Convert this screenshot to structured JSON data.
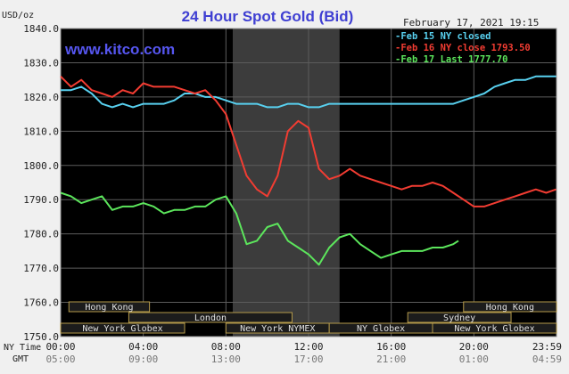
{
  "chart_data": {
    "type": "line",
    "title": "24 Hour Spot Gold (Bid)",
    "date_label": "February 17, 2021 19:15",
    "site": "www.kitco.com",
    "ylabel": "USD/oz",
    "ylim": [
      1750,
      1840
    ],
    "yticks": [
      "1840.0",
      "1830.0",
      "1820.0",
      "1810.0",
      "1800.0",
      "1790.0",
      "1780.0",
      "1770.0",
      "1760.0",
      "1750.0"
    ],
    "x_ny_label": "NY Time",
    "x_gmt_label": "GMT",
    "x_ny_ticks": [
      "00:00",
      "04:00",
      "08:00",
      "12:00",
      "16:00",
      "20:00",
      "23:59"
    ],
    "x_gmt_ticks": [
      "05:00",
      "09:00",
      "13:00",
      "17:00",
      "21:00",
      "01:00",
      "04:59"
    ],
    "shaded_session": "New York NYMEX",
    "markets": [
      {
        "name": "Hong Kong",
        "row": 0
      },
      {
        "name": "Hong Kong",
        "row": 0
      },
      {
        "name": "London",
        "row": 1
      },
      {
        "name": "Sydney",
        "row": 1
      },
      {
        "name": "New York Globex",
        "row": 2
      },
      {
        "name": "New York NYMEX",
        "row": 2
      },
      {
        "name": "NY Globex",
        "row": 2
      },
      {
        "name": "New York Globex",
        "row": 2
      }
    ],
    "series": [
      {
        "name": "Feb 15 NY closed",
        "color": "#58d0ef",
        "x_hours": [
          0,
          0.5,
          1,
          1.5,
          2,
          2.5,
          3,
          3.5,
          4,
          4.5,
          5,
          5.5,
          6,
          6.5,
          7,
          7.5,
          8,
          8.5,
          9,
          9.5,
          10,
          10.5,
          11,
          11.5,
          12,
          12.5,
          13,
          13.5,
          14,
          14.5,
          15,
          15.5,
          16,
          16.5,
          17,
          17.5,
          18,
          18.5,
          19,
          19.5,
          20,
          20.5,
          21,
          21.5,
          22,
          22.5,
          23,
          23.5,
          23.98
        ],
        "values": [
          1822,
          1822,
          1823,
          1821,
          1818,
          1817,
          1818,
          1817,
          1818,
          1818,
          1818,
          1819,
          1821,
          1821,
          1820,
          1820,
          1819,
          1818,
          1818,
          1818,
          1817,
          1817,
          1818,
          1818,
          1817,
          1817,
          1818,
          1818,
          1818,
          1818,
          1818,
          1818,
          1818,
          1818,
          1818,
          1818,
          1818,
          1818,
          1818,
          1819,
          1820,
          1821,
          1823,
          1824,
          1825,
          1825,
          1826,
          1826,
          1826
        ]
      },
      {
        "name": "Feb 16 NY close 1793.50",
        "color": "#f23c32",
        "x_hours": [
          0,
          0.5,
          1,
          1.5,
          2,
          2.5,
          3,
          3.5,
          4,
          4.5,
          5,
          5.5,
          6,
          6.5,
          7,
          7.5,
          8,
          8.5,
          9,
          9.5,
          10,
          10.5,
          11,
          11.5,
          12,
          12.5,
          13,
          13.5,
          14,
          14.5,
          15,
          15.5,
          16,
          16.5,
          17,
          17.5,
          18,
          18.5,
          19,
          19.5,
          20,
          20.5,
          21,
          21.5,
          22,
          22.5,
          23,
          23.5,
          23.98
        ],
        "values": [
          1826,
          1823,
          1825,
          1822,
          1821,
          1820,
          1822,
          1821,
          1824,
          1823,
          1823,
          1823,
          1822,
          1821,
          1822,
          1819,
          1815,
          1806,
          1797,
          1793,
          1791,
          1797,
          1810,
          1813,
          1811,
          1799,
          1796,
          1797,
          1799,
          1797,
          1796,
          1795,
          1794,
          1793,
          1794,
          1794,
          1795,
          1794,
          1792,
          1790,
          1788,
          1788,
          1789,
          1790,
          1791,
          1792,
          1793,
          1792,
          1793
        ]
      },
      {
        "name": "Feb 17 Last 1777.70",
        "color": "#5ce65c",
        "x_hours": [
          0,
          0.5,
          1,
          1.5,
          2,
          2.5,
          3,
          3.5,
          4,
          4.5,
          5,
          5.5,
          6,
          6.5,
          7,
          7.5,
          8,
          8.5,
          9,
          9.5,
          10,
          10.5,
          11,
          11.5,
          12,
          12.5,
          13,
          13.5,
          14,
          14.5,
          15,
          15.5,
          16,
          16.5,
          17,
          17.5,
          18,
          18.5,
          19,
          19.25
        ],
        "values": [
          1792,
          1791,
          1789,
          1790,
          1791,
          1787,
          1788,
          1788,
          1789,
          1788,
          1786,
          1787,
          1787,
          1788,
          1788,
          1790,
          1791,
          1786,
          1777,
          1778,
          1782,
          1783,
          1778,
          1776,
          1774,
          1771,
          1776,
          1779,
          1780,
          1777,
          1775,
          1773,
          1774,
          1775,
          1775,
          1775,
          1776,
          1776,
          1777,
          1778
        ]
      }
    ],
    "grid": true
  }
}
